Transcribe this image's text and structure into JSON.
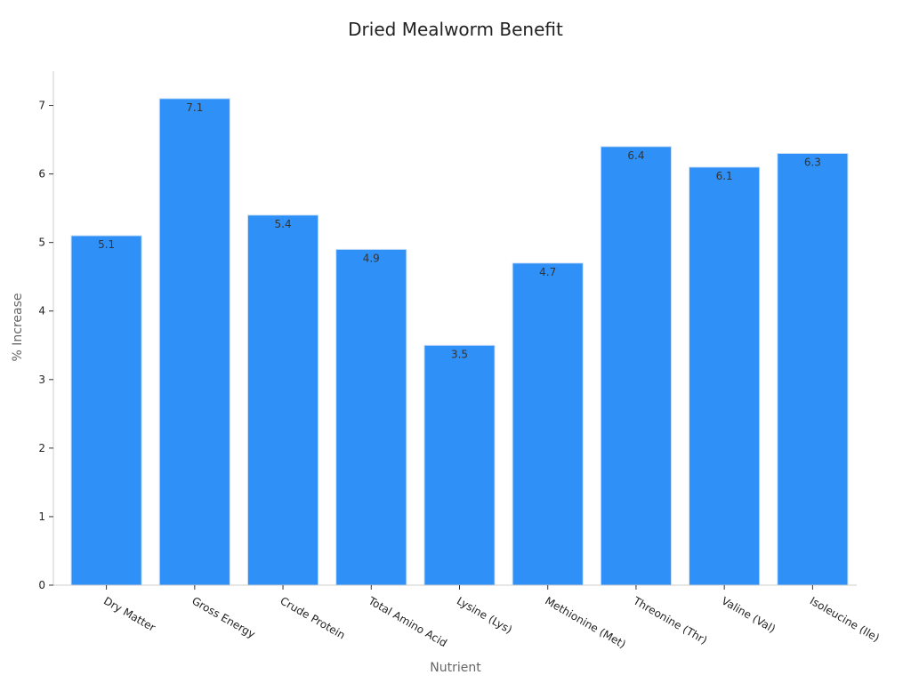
{
  "chart_data": {
    "type": "bar",
    "title": "Dried Mealworm Benefit",
    "xlabel": "Nutrient",
    "ylabel": "% Increase",
    "categories": [
      "Dry Matter",
      "Gross Energy",
      "Crude Protein",
      "Total Amino Acid",
      "Lysine (Lys)",
      "Methionine (Met)",
      "Threonine (Thr)",
      "Valine (Val)",
      "Isoleucine (Ile)"
    ],
    "values": [
      5.1,
      7.1,
      5.4,
      4.9,
      3.5,
      4.7,
      6.4,
      6.1,
      6.3
    ],
    "data_labels": [
      "5.1",
      "7.1",
      "5.4",
      "4.9",
      "3.5",
      "4.7",
      "6.4",
      "6.1",
      "6.3"
    ],
    "ylim": [
      0,
      7.5
    ],
    "yticks": [
      0,
      1,
      2,
      3,
      4,
      5,
      6,
      7
    ],
    "grid": false,
    "legend": false,
    "bar_color": "#2f91f7"
  }
}
